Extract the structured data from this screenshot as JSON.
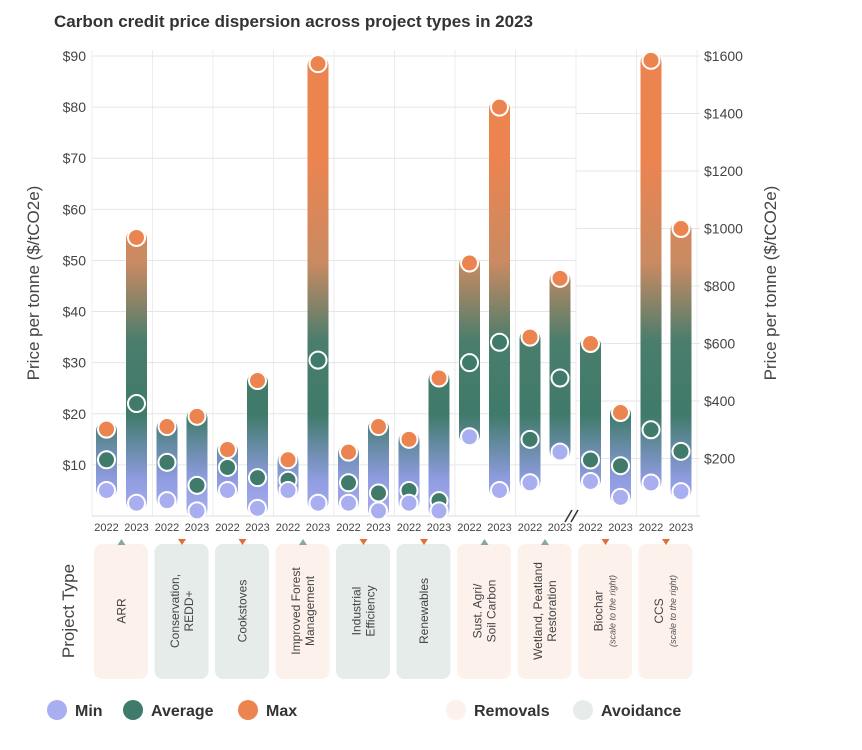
{
  "chart_data": {
    "type": "range-bar",
    "title": "Carbon credit price dispersion across project types in 2023",
    "ylabel_left": "Price per tonne ($/tCO2e)",
    "ylabel_right": "Price per tonne ($/tCO2e)",
    "ylim_left": [
      0,
      90
    ],
    "ylim_right": [
      0,
      1600
    ],
    "yticks_left": [
      "$10",
      "$20",
      "$30",
      "$40",
      "$50",
      "$60",
      "$70",
      "$80",
      "$90"
    ],
    "yticks_right": [
      "$200",
      "$400",
      "$600",
      "$800",
      "$1000",
      "$1200",
      "$1400",
      "$1600"
    ],
    "xlabel": "Project Type",
    "series_names": [
      "Min",
      "Average",
      "Max"
    ],
    "colors": {
      "min": "#a8aef0",
      "avg": "#3f7a6a",
      "max": "#ec8450",
      "removals_bg": "#fdf1ec",
      "avoidance_bg": "#e6ecea",
      "arrow_up": "#88a89a",
      "arrow_down": "#e0703a"
    },
    "categories": [
      {
        "label": "ARR",
        "note": "",
        "kind": "removals",
        "scale": "left",
        "trend": "up",
        "years": [
          {
            "year": "2022",
            "min": 5,
            "avg": 11,
            "max": 17
          },
          {
            "year": "2023",
            "min": 2.5,
            "avg": 22,
            "max": 54.5
          }
        ]
      },
      {
        "label": "Conservation, REDD+",
        "note": "",
        "kind": "avoidance",
        "scale": "left",
        "trend": "down",
        "years": [
          {
            "year": "2022",
            "min": 3,
            "avg": 10.5,
            "max": 17.5
          },
          {
            "year": "2023",
            "min": 1,
            "avg": 6,
            "max": 19.5
          }
        ]
      },
      {
        "label": "Cookstoves",
        "note": "",
        "kind": "avoidance",
        "scale": "left",
        "trend": "down",
        "years": [
          {
            "year": "2022",
            "min": 5,
            "avg": 9.5,
            "max": 13
          },
          {
            "year": "2023",
            "min": 1.5,
            "avg": 7.5,
            "max": 26.5
          }
        ]
      },
      {
        "label": "Improved Forest Management",
        "note": "",
        "kind": "removals",
        "scale": "left",
        "trend": "up",
        "years": [
          {
            "year": "2022",
            "min": 5,
            "avg": 7,
            "max": 11
          },
          {
            "year": "2023",
            "min": 2.5,
            "avg": 30.5,
            "max": 88.5
          }
        ]
      },
      {
        "label": "Industrial Efficiency",
        "note": "",
        "kind": "avoidance",
        "scale": "left",
        "trend": "down",
        "years": [
          {
            "year": "2022",
            "min": 2.5,
            "avg": 6.5,
            "max": 12.5
          },
          {
            "year": "2023",
            "min": 1,
            "avg": 4.5,
            "max": 17.5
          }
        ]
      },
      {
        "label": "Renewables",
        "note": "",
        "kind": "avoidance",
        "scale": "left",
        "trend": "down",
        "years": [
          {
            "year": "2022",
            "min": 2.5,
            "avg": 5,
            "max": 15
          },
          {
            "year": "2023",
            "min": 1,
            "avg": 3,
            "max": 27
          }
        ]
      },
      {
        "label": "Sust. Agri/ Soil Carbon",
        "note": "",
        "kind": "removals",
        "scale": "left",
        "trend": "up",
        "years": [
          {
            "year": "2022",
            "min": 15.5,
            "avg": 30,
            "max": 49.5
          },
          {
            "year": "2023",
            "min": 5,
            "avg": 34,
            "max": 80
          }
        ]
      },
      {
        "label": "Wetland, Peatland Restoration",
        "note": "",
        "kind": "removals",
        "scale": "left",
        "trend": "up",
        "years": [
          {
            "year": "2022",
            "min": 6.5,
            "avg": 15,
            "max": 35
          },
          {
            "year": "2023",
            "min": 12.5,
            "avg": 27,
            "max": 46.5
          }
        ]
      },
      {
        "label": "Biochar",
        "note": "(scale to the right)",
        "kind": "removals",
        "scale": "right",
        "trend": "down",
        "years": [
          {
            "year": "2022",
            "min": 120,
            "avg": 195,
            "max": 600
          },
          {
            "year": "2023",
            "min": 65,
            "avg": 175,
            "max": 360
          }
        ]
      },
      {
        "label": "CCS",
        "note": "(scale to the right)",
        "kind": "removals",
        "scale": "right",
        "trend": "down",
        "years": [
          {
            "year": "2022",
            "min": 115,
            "avg": 300,
            "max": 1585
          },
          {
            "year": "2023",
            "min": 85,
            "avg": 225,
            "max": 1000
          }
        ]
      }
    ],
    "legend": {
      "min": "Min",
      "avg": "Average",
      "max": "Max",
      "removals": "Removals",
      "avoidance": "Avoidance"
    }
  }
}
